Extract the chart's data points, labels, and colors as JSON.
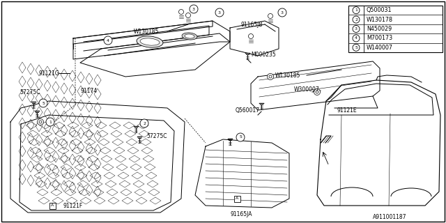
{
  "bg_color": "#ffffff",
  "line_color": "#000000",
  "text_color": "#000000",
  "legend_items": [
    {
      "num": "1",
      "code": "Q500031"
    },
    {
      "num": "2",
      "code": "W130178"
    },
    {
      "num": "3",
      "code": "N450029"
    },
    {
      "num": "4",
      "code": "M700173"
    },
    {
      "num": "5",
      "code": "W140007"
    }
  ],
  "footer": "A911001187",
  "font_size": 5.5
}
